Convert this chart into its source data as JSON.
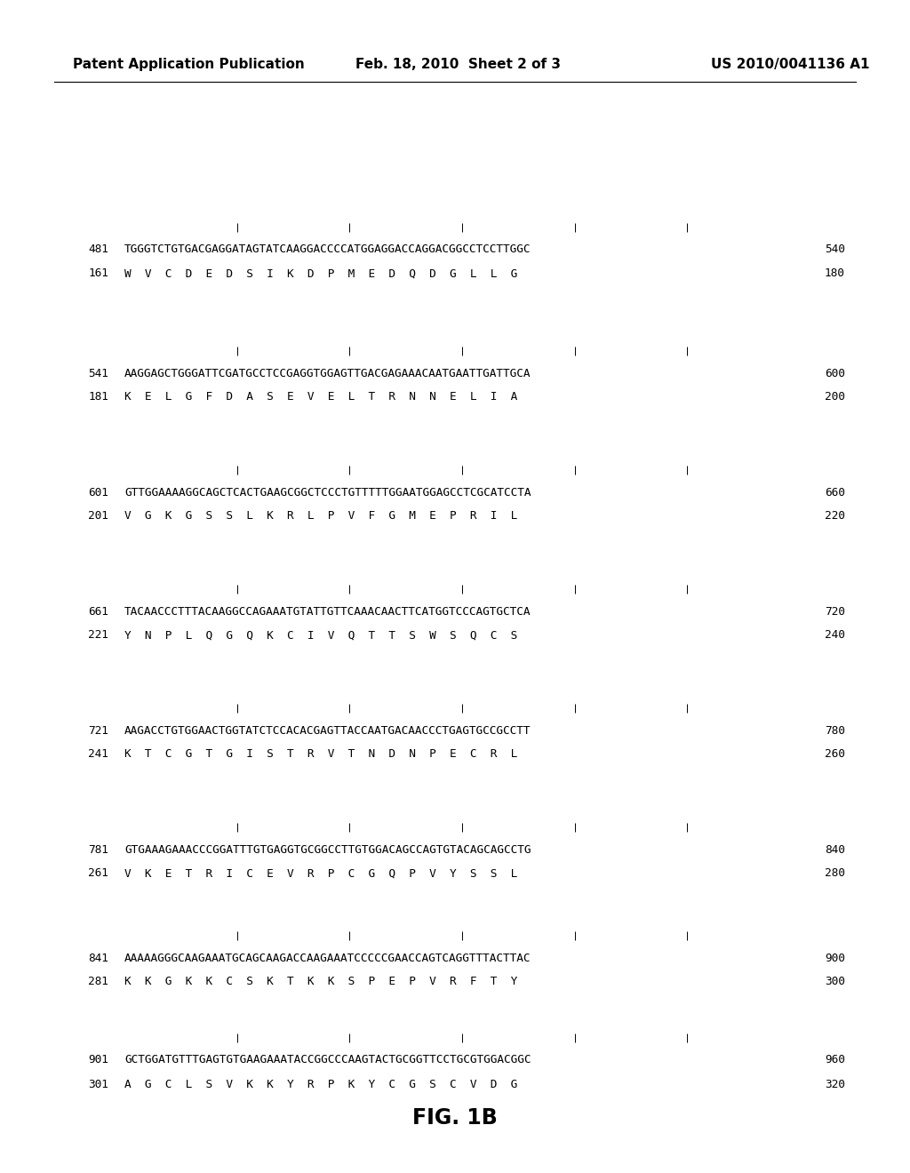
{
  "background_color": "#ffffff",
  "header_left": "Patent Application Publication",
  "header_center": "Feb. 18, 2010  Sheet 2 of 3",
  "header_right": "US 2010/0041136 A1",
  "figure_label": "FIG. 1B",
  "sequence_blocks": [
    {
      "dna_num": "481",
      "dna_seq": "TGGGTCTGTGACGAGGATAGTATCAAGGACCCCATGGAGGACCAGGACGGCCTCCTTGGC",
      "dna_end": "540",
      "aa_num": "161",
      "aa_seq": "W  V  C  D  E  D  S  I  K  D  P  M  E  D  Q  D  G  L  L  G",
      "aa_end": "180"
    },
    {
      "dna_num": "541",
      "dna_seq": "AAGGAGCTGGGATTCGATGCCTCCGAGGTGGAGTTGACGAGAAACAATGAATTGATTGCA",
      "dna_end": "600",
      "aa_num": "181",
      "aa_seq": "K  E  L  G  F  D  A  S  E  V  E  L  T  R  N  N  E  L  I  A",
      "aa_end": "200"
    },
    {
      "dna_num": "601",
      "dna_seq": "GTTGGAAAAGGCAGCTCACTGAAGCGGCTCCCTGTTTTTGGAATGGAGCCTCGCATCCTA",
      "dna_end": "660",
      "aa_num": "201",
      "aa_seq": "V  G  K  G  S  S  L  K  R  L  P  V  F  G  M  E  P  R  I  L",
      "aa_end": "220"
    },
    {
      "dna_num": "661",
      "dna_seq": "TACAACCCTTTACAAGGCCAGAAATGTATTGTTCAAACAACTTCATGGTCCCAGTGCTCA",
      "dna_end": "720",
      "aa_num": "221",
      "aa_seq": "Y  N  P  L  Q  G  Q  K  C  I  V  Q  T  T  S  W  S  Q  C  S",
      "aa_end": "240"
    },
    {
      "dna_num": "721",
      "dna_seq": "AAGACCTGTGGAACTGGTATCTCCACACGAGTTACCAATGACAACCCTGAGTGCCGCCTT",
      "dna_end": "780",
      "aa_num": "241",
      "aa_seq": "K  T  C  G  T  G  I  S  T  R  V  T  N  D  N  P  E  C  R  L",
      "aa_end": "260"
    },
    {
      "dna_num": "781",
      "dna_seq": "GTGAAAGAAACCCGGATTTGTGAGGTGCGGCCTTGTGGACAGCCAGTGTACAGCAGCCTG",
      "dna_end": "840",
      "aa_num": "261",
      "aa_seq": "V  K  E  T  R  I  C  E  V  R  P  C  G  Q  P  V  Y  S  S  L",
      "aa_end": "280"
    },
    {
      "dna_num": "841",
      "dna_seq": "AAAAAGGGCAAGAAATGCAGCAAGACCAAGAAATCCCCCGAACCAGTCAGGTTTACTTAC",
      "dna_end": "900",
      "aa_num": "281",
      "aa_seq": "K  K  G  K  K  C  S  K  T  K  K  S  P  E  P  V  R  F  T  Y",
      "aa_end": "300"
    },
    {
      "dna_num": "901",
      "dna_seq": "GCTGGATGTTTGAGTGTGAAGAAATACCGGCCCAAGTACTGCGGTTCCTGCGTGGACGGC",
      "dna_end": "960",
      "aa_num": "301",
      "aa_seq": "A  G  C  L  S  V  K  K  Y  R  P  K  Y  C  G  S  C  V  D  G",
      "aa_end": "320"
    }
  ]
}
